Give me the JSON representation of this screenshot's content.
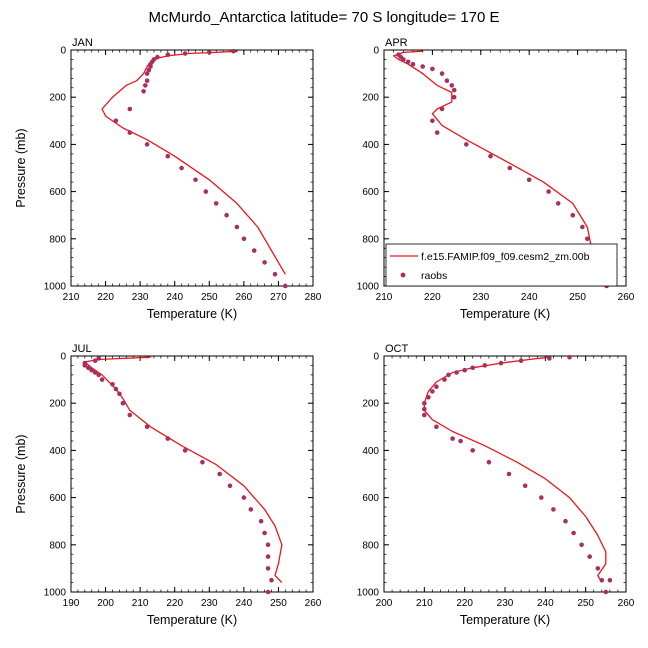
{
  "figure": {
    "title": "McMurdo_Antarctica  latitude= 70 S longitude= 170 E"
  },
  "legend": {
    "model_label": "f.e15.FAMIP.f09_f09.cesm2_zm.00b",
    "obs_label": "raobs",
    "model_color": "#e8171d",
    "obs_color": "#a8305f"
  },
  "chart_data": [
    {
      "type": "line",
      "panel": "JAN",
      "xlabel": "Temperature (K)",
      "ylabel": "Pressure (mb)",
      "xlim": [
        210,
        280
      ],
      "ylim": [
        1000,
        0
      ],
      "xticks": [
        210,
        220,
        230,
        240,
        250,
        260,
        270,
        280
      ],
      "yticks": [
        0,
        200,
        400,
        600,
        800,
        1000
      ],
      "model": [
        [
          258,
          5
        ],
        [
          252,
          10
        ],
        [
          244,
          15
        ],
        [
          238,
          25
        ],
        [
          235,
          35
        ],
        [
          233,
          50
        ],
        [
          232,
          70
        ],
        [
          231,
          100
        ],
        [
          229,
          130
        ],
        [
          226,
          150
        ],
        [
          222,
          200
        ],
        [
          219,
          250
        ],
        [
          220,
          280
        ],
        [
          225,
          330
        ],
        [
          232,
          380
        ],
        [
          240,
          450
        ],
        [
          250,
          550
        ],
        [
          258,
          650
        ],
        [
          264,
          750
        ],
        [
          268,
          850
        ],
        [
          270,
          900
        ],
        [
          272,
          950
        ]
      ],
      "obs": [
        [
          257,
          5
        ],
        [
          250,
          10
        ],
        [
          243,
          15
        ],
        [
          238,
          20
        ],
        [
          235,
          30
        ],
        [
          234,
          40
        ],
        [
          233.5,
          50
        ],
        [
          233,
          60
        ],
        [
          233,
          70
        ],
        [
          232.5,
          85
        ],
        [
          232,
          100
        ],
        [
          232,
          130
        ],
        [
          231.5,
          150
        ],
        [
          231,
          175
        ],
        [
          227,
          250
        ],
        [
          223,
          300
        ],
        [
          227,
          350
        ],
        [
          232,
          400
        ],
        [
          238,
          450
        ],
        [
          242,
          500
        ],
        [
          246,
          550
        ],
        [
          249,
          600
        ],
        [
          252,
          650
        ],
        [
          255,
          700
        ],
        [
          258,
          750
        ],
        [
          260,
          800
        ],
        [
          263,
          850
        ],
        [
          266,
          900
        ],
        [
          269,
          950
        ],
        [
          272,
          1000
        ]
      ]
    },
    {
      "type": "line",
      "panel": "APR",
      "xlabel": "Temperature (K)",
      "ylabel": "",
      "xlim": [
        210,
        260
      ],
      "ylim": [
        1000,
        0
      ],
      "xticks": [
        210,
        220,
        230,
        240,
        250,
        260
      ],
      "yticks": [
        0,
        200,
        400,
        600,
        800,
        1000
      ],
      "model": [
        [
          218,
          5
        ],
        [
          214,
          10
        ],
        [
          212,
          25
        ],
        [
          213,
          40
        ],
        [
          215,
          60
        ],
        [
          218,
          100
        ],
        [
          221,
          150
        ],
        [
          224,
          180
        ],
        [
          224,
          220
        ],
        [
          221,
          250
        ],
        [
          220,
          270
        ],
        [
          222,
          320
        ],
        [
          227,
          380
        ],
        [
          236,
          480
        ],
        [
          243,
          560
        ],
        [
          249,
          650
        ],
        [
          252,
          750
        ],
        [
          253,
          850
        ],
        [
          255,
          920
        ],
        [
          256,
          960
        ]
      ],
      "obs": [
        [
          213,
          20
        ],
        [
          213.5,
          30
        ],
        [
          214,
          40
        ],
        [
          215,
          50
        ],
        [
          216,
          60
        ],
        [
          218,
          70
        ],
        [
          220,
          80
        ],
        [
          222,
          100
        ],
        [
          223,
          130
        ],
        [
          224,
          150
        ],
        [
          224.5,
          170
        ],
        [
          224.5,
          200
        ],
        [
          222,
          250
        ],
        [
          220,
          300
        ],
        [
          221,
          350
        ],
        [
          227,
          400
        ],
        [
          232,
          450
        ],
        [
          236,
          500
        ],
        [
          240,
          550
        ],
        [
          244,
          600
        ],
        [
          246,
          650
        ],
        [
          249,
          700
        ],
        [
          251,
          750
        ],
        [
          252,
          800
        ],
        [
          253,
          850
        ],
        [
          254,
          900
        ],
        [
          256,
          950
        ],
        [
          256,
          1000
        ]
      ]
    },
    {
      "type": "line",
      "panel": "JUL",
      "xlabel": "Temperature (K)",
      "ylabel": "Pressure (mb)",
      "xlim": [
        190,
        260
      ],
      "ylim": [
        1000,
        0
      ],
      "xticks": [
        190,
        200,
        210,
        220,
        230,
        240,
        250,
        260
      ],
      "yticks": [
        0,
        200,
        400,
        600,
        800,
        1000
      ],
      "model": [
        [
          213,
          5
        ],
        [
          205,
          10
        ],
        [
          198,
          15
        ],
        [
          194,
          25
        ],
        [
          196,
          50
        ],
        [
          199,
          80
        ],
        [
          201,
          110
        ],
        [
          203,
          140
        ],
        [
          205,
          180
        ],
        [
          207,
          230
        ],
        [
          213,
          300
        ],
        [
          222,
          380
        ],
        [
          232,
          460
        ],
        [
          240,
          550
        ],
        [
          246,
          650
        ],
        [
          249,
          720
        ],
        [
          251,
          800
        ],
        [
          250,
          880
        ],
        [
          249,
          930
        ],
        [
          251,
          960
        ]
      ],
      "obs": [
        [
          198,
          10
        ],
        [
          197,
          20
        ],
        [
          194,
          30
        ],
        [
          194,
          40
        ],
        [
          195,
          50
        ],
        [
          196,
          60
        ],
        [
          197,
          70
        ],
        [
          198,
          80
        ],
        [
          199,
          100
        ],
        [
          202,
          120
        ],
        [
          203,
          140
        ],
        [
          204,
          160
        ],
        [
          205,
          200
        ],
        [
          207,
          250
        ],
        [
          212,
          300
        ],
        [
          218,
          350
        ],
        [
          223,
          400
        ],
        [
          228,
          450
        ],
        [
          233,
          500
        ],
        [
          236,
          550
        ],
        [
          240,
          600
        ],
        [
          242,
          650
        ],
        [
          245,
          700
        ],
        [
          246,
          750
        ],
        [
          247,
          800
        ],
        [
          247,
          850
        ],
        [
          247,
          900
        ],
        [
          248,
          950
        ],
        [
          247,
          1000
        ]
      ]
    },
    {
      "type": "line",
      "panel": "OCT",
      "xlabel": "Temperature (K)",
      "ylabel": "",
      "xlim": [
        200,
        260
      ],
      "ylim": [
        1000,
        0
      ],
      "xticks": [
        200,
        210,
        220,
        230,
        240,
        250,
        260
      ],
      "yticks": [
        0,
        200,
        400,
        600,
        800,
        1000
      ],
      "model": [
        [
          241,
          5
        ],
        [
          236,
          15
        ],
        [
          229,
          30
        ],
        [
          222,
          50
        ],
        [
          217,
          70
        ],
        [
          213,
          110
        ],
        [
          211,
          150
        ],
        [
          210,
          200
        ],
        [
          210,
          230
        ],
        [
          212,
          270
        ],
        [
          217,
          320
        ],
        [
          225,
          380
        ],
        [
          233,
          450
        ],
        [
          240,
          520
        ],
        [
          246,
          600
        ],
        [
          250,
          680
        ],
        [
          253,
          760
        ],
        [
          255,
          830
        ],
        [
          255,
          880
        ],
        [
          253,
          930
        ],
        [
          254,
          960
        ]
      ],
      "obs": [
        [
          246,
          5
        ],
        [
          241,
          10
        ],
        [
          234,
          20
        ],
        [
          229,
          30
        ],
        [
          225,
          40
        ],
        [
          222,
          50
        ],
        [
          220,
          60
        ],
        [
          218,
          70
        ],
        [
          216,
          80
        ],
        [
          215,
          100
        ],
        [
          213,
          130
        ],
        [
          212,
          150
        ],
        [
          211,
          175
        ],
        [
          210,
          200
        ],
        [
          210,
          225
        ],
        [
          210,
          250
        ],
        [
          213,
          300
        ],
        [
          217,
          350
        ],
        [
          219,
          360
        ],
        [
          222,
          400
        ],
        [
          226,
          450
        ],
        [
          231,
          500
        ],
        [
          235,
          550
        ],
        [
          239,
          600
        ],
        [
          242,
          650
        ],
        [
          245,
          700
        ],
        [
          247,
          750
        ],
        [
          249,
          800
        ],
        [
          251,
          850
        ],
        [
          253,
          900
        ],
        [
          254,
          950
        ],
        [
          256,
          950
        ],
        [
          255,
          1000
        ]
      ]
    }
  ]
}
